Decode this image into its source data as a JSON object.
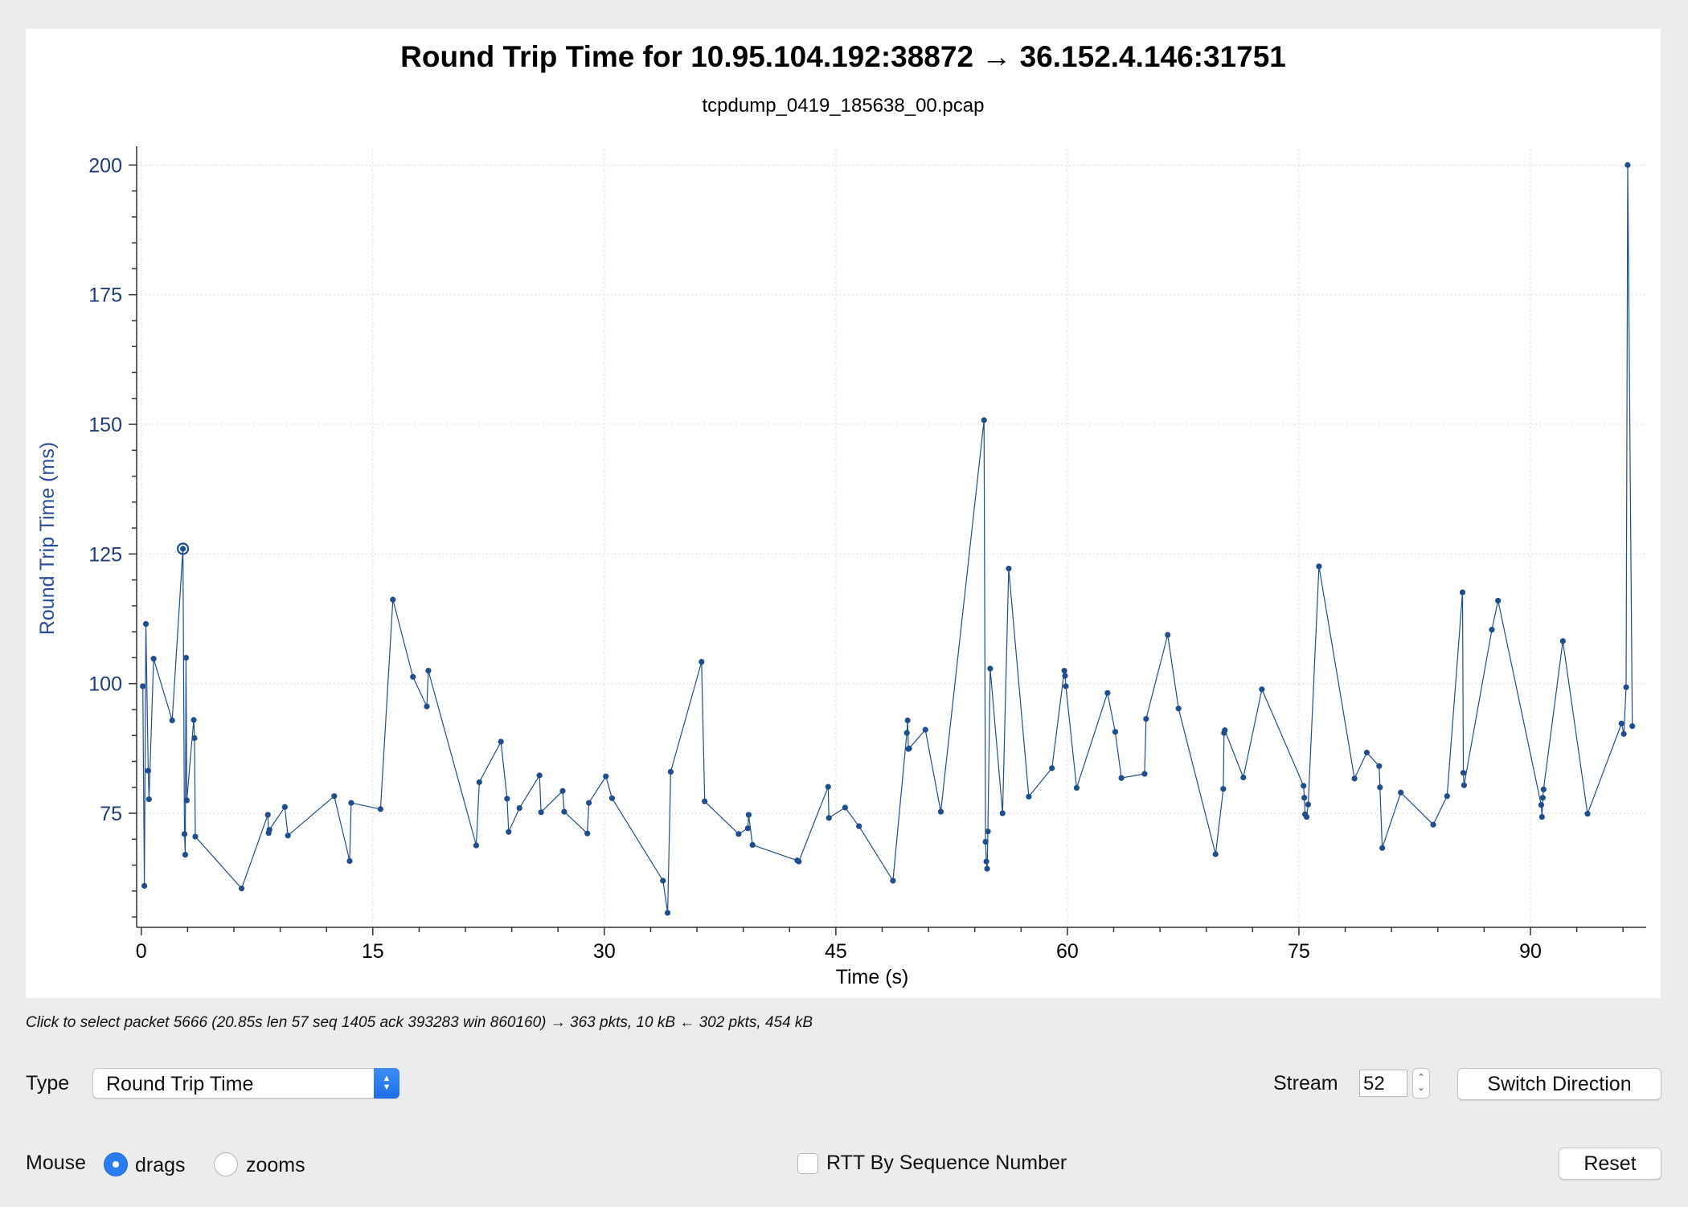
{
  "chart_data": {
    "type": "scatter",
    "title": "Round Trip Time for 10.95.104.192:38872 → 36.152.4.146:31751",
    "subtitle": "tcpdump_0419_185638_00.pcap",
    "xlabel": "Time (s)",
    "ylabel": "Round Trip Time (ms)",
    "xlim": [
      -0.3,
      97.5
    ],
    "ylim": [
      53,
      203
    ],
    "xticks": [
      0,
      15,
      30,
      45,
      60,
      75,
      90
    ],
    "yticks": [
      75,
      100,
      125,
      150,
      175,
      200
    ],
    "grid": true,
    "points_connected": true,
    "color": "#1f4e8c",
    "selected_point": [
      2.7,
      126
    ],
    "x": [
      0.1,
      0.2,
      0.3,
      0.45,
      0.5,
      0.8,
      2.0,
      2.7,
      2.8,
      2.85,
      2.9,
      2.95,
      3.4,
      3.45,
      3.5,
      6.5,
      8.2,
      8.25,
      8.3,
      9.3,
      9.5,
      12.5,
      13.5,
      13.6,
      15.5,
      16.3,
      17.6,
      18.5,
      18.6,
      21.7,
      21.9,
      23.3,
      23.7,
      23.8,
      24.5,
      25.8,
      25.9,
      27.3,
      27.4,
      28.9,
      29.0,
      30.1,
      30.5,
      33.8,
      34.1,
      34.3,
      36.3,
      36.5,
      38.7,
      39.3,
      39.35,
      39.6,
      42.5,
      42.6,
      44.5,
      44.55,
      45.6,
      46.5,
      48.7,
      49.6,
      49.65,
      49.7,
      49.75,
      50.8,
      51.8,
      54.6,
      54.7,
      54.75,
      54.8,
      54.85,
      55.0,
      55.8,
      56.2,
      57.5,
      59.0,
      59.8,
      59.85,
      59.9,
      60.6,
      62.6,
      63.1,
      63.5,
      65.0,
      65.1,
      66.5,
      67.2,
      69.6,
      70.1,
      70.15,
      70.2,
      71.4,
      72.6,
      75.3,
      75.35,
      75.4,
      75.5,
      75.6,
      76.3,
      78.6,
      79.4,
      80.2,
      80.25,
      80.4,
      81.6,
      83.7,
      84.6,
      85.6,
      85.65,
      85.7,
      87.5,
      87.9,
      90.7,
      90.75,
      90.8,
      90.85,
      92.1,
      93.7,
      95.9,
      96.05,
      96.2,
      96.3,
      96.6
    ],
    "y": [
      99.5,
      61,
      111.5,
      83.2,
      77.7,
      104.8,
      92.9,
      126,
      71,
      67,
      105,
      77.5,
      93,
      89.5,
      70.5,
      60.5,
      74.7,
      71.2,
      71.8,
      76.2,
      70.7,
      78.3,
      65.8,
      77,
      75.8,
      116.2,
      101.3,
      95.6,
      102.5,
      68.8,
      81,
      88.8,
      77.8,
      71.4,
      76,
      82.3,
      75.2,
      79.3,
      75.3,
      71.1,
      77,
      82.1,
      77.9,
      62,
      55.8,
      83,
      104.2,
      77.3,
      71,
      72.1,
      74.7,
      68.9,
      65.9,
      65.7,
      80.1,
      74.1,
      76.1,
      72.5,
      62,
      90.5,
      92.9,
      87.4,
      87.5,
      91.1,
      75.3,
      150.8,
      69.5,
      65.7,
      64.3,
      71.5,
      102.9,
      75,
      122.2,
      78.2,
      83.7,
      102.5,
      101.5,
      99.5,
      79.9,
      98.2,
      90.7,
      81.8,
      82.6,
      93.2,
      109.4,
      95.2,
      67.1,
      79.7,
      90.5,
      91,
      81.9,
      98.9,
      80.3,
      78,
      74.8,
      74.3,
      76.7,
      122.6,
      81.7,
      86.7,
      84.1,
      80,
      68.3,
      79,
      72.8,
      78.3,
      117.6,
      82.8,
      80.4,
      110.4,
      116,
      76.6,
      74.3,
      78,
      79.6,
      108.2,
      74.9,
      92.3,
      90.3,
      99.3,
      200,
      91.8
    ]
  },
  "status": {
    "hint": "Click to select packet 5666 (20.85s len 57 seq 1405 ack 393283 win 860160) → 363 pkts, 10 kB ← 302 pkts, 454 kB"
  },
  "controls": {
    "type_label": "Type",
    "type_value": "Round Trip Time",
    "stream_label": "Stream",
    "stream_value": "52",
    "switch_direction_label": "Switch Direction",
    "mouse_label": "Mouse",
    "drags_label": "drags",
    "zooms_label": "zooms",
    "mouse_mode": "drags",
    "rtt_by_seq_label": "RTT By Sequence Number",
    "rtt_by_seq_checked": false,
    "reset_label": "Reset"
  },
  "icons": {
    "select_arrows": "chevron-up-down-icon",
    "stepper": "stepper-arrows-icon"
  }
}
